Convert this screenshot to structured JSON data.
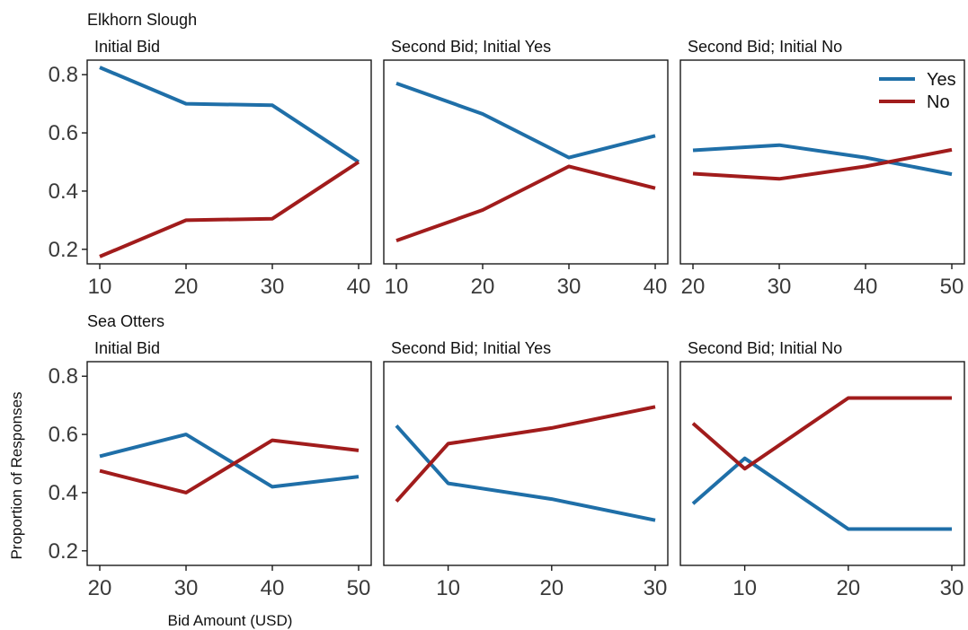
{
  "figure": {
    "ylabel": "Proportion of Responses",
    "xlabel": "Bid Amount (USD)",
    "row_titles": [
      "Elkhorn Slough",
      "Sea Otters"
    ],
    "legend": {
      "placement": "top-right of top-right panel",
      "entries": [
        {
          "label": "Yes",
          "color": "#1f6fa8"
        },
        {
          "label": "No",
          "color": "#a11c1c"
        }
      ]
    }
  },
  "chart_data": [
    {
      "type": "line",
      "group": "Elkhorn Slough",
      "title": "Initial Bid",
      "xlim": [
        10,
        40
      ],
      "ylim": [
        0.15,
        0.85
      ],
      "xticks": [
        10,
        20,
        30,
        40
      ],
      "yticks": [
        0.2,
        0.4,
        0.6,
        0.8
      ],
      "series": [
        {
          "name": "Yes",
          "color": "#1f6fa8",
          "x": [
            10,
            20,
            30,
            40
          ],
          "y": [
            0.825,
            0.7,
            0.695,
            0.5
          ]
        },
        {
          "name": "No",
          "color": "#a11c1c",
          "x": [
            10,
            20,
            30,
            40
          ],
          "y": [
            0.175,
            0.3,
            0.305,
            0.5
          ]
        }
      ]
    },
    {
      "type": "line",
      "group": "Elkhorn Slough",
      "title": "Second Bid; Initial Yes",
      "xlim": [
        10,
        40
      ],
      "ylim": [
        0.15,
        0.85
      ],
      "xticks": [
        10,
        20,
        30,
        40
      ],
      "yticks": [
        0.2,
        0.4,
        0.6,
        0.8
      ],
      "series": [
        {
          "name": "Yes",
          "color": "#1f6fa8",
          "x": [
            10,
            20,
            30,
            40
          ],
          "y": [
            0.77,
            0.665,
            0.515,
            0.59
          ]
        },
        {
          "name": "No",
          "color": "#a11c1c",
          "x": [
            10,
            20,
            30,
            40
          ],
          "y": [
            0.23,
            0.335,
            0.485,
            0.41
          ]
        }
      ]
    },
    {
      "type": "line",
      "group": "Elkhorn Slough",
      "title": "Second Bid; Initial No",
      "xlim": [
        20,
        50
      ],
      "ylim": [
        0.15,
        0.85
      ],
      "xticks": [
        20,
        30,
        40,
        50
      ],
      "yticks": [
        0.2,
        0.4,
        0.6,
        0.8
      ],
      "series": [
        {
          "name": "Yes",
          "color": "#1f6fa8",
          "x": [
            20,
            30,
            40,
            50
          ],
          "y": [
            0.54,
            0.558,
            0.515,
            0.458
          ]
        },
        {
          "name": "No",
          "color": "#a11c1c",
          "x": [
            20,
            30,
            40,
            50
          ],
          "y": [
            0.46,
            0.442,
            0.485,
            0.542
          ]
        }
      ]
    },
    {
      "type": "line",
      "group": "Sea Otters",
      "title": "Initial Bid",
      "xlim": [
        20,
        50
      ],
      "ylim": [
        0.15,
        0.85
      ],
      "xticks": [
        20,
        30,
        40,
        50
      ],
      "yticks": [
        0.2,
        0.4,
        0.6,
        0.8
      ],
      "series": [
        {
          "name": "Yes",
          "color": "#1f6fa8",
          "x": [
            20,
            30,
            40,
            50
          ],
          "y": [
            0.525,
            0.6,
            0.42,
            0.455
          ]
        },
        {
          "name": "No",
          "color": "#a11c1c",
          "x": [
            20,
            30,
            40,
            50
          ],
          "y": [
            0.475,
            0.4,
            0.58,
            0.545
          ]
        }
      ]
    },
    {
      "type": "line",
      "group": "Sea Otters",
      "title": "Second Bid; Initial Yes",
      "xlim": [
        5,
        30
      ],
      "ylim": [
        0.15,
        0.85
      ],
      "xticks": [
        10,
        20,
        30
      ],
      "yticks": [
        0.2,
        0.4,
        0.6,
        0.8
      ],
      "series": [
        {
          "name": "Yes",
          "color": "#1f6fa8",
          "x": [
            5,
            10,
            20,
            30
          ],
          "y": [
            0.63,
            0.432,
            0.378,
            0.305
          ]
        },
        {
          "name": "No",
          "color": "#a11c1c",
          "x": [
            5,
            10,
            20,
            30
          ],
          "y": [
            0.37,
            0.568,
            0.622,
            0.695
          ]
        }
      ]
    },
    {
      "type": "line",
      "group": "Sea Otters",
      "title": "Second Bid; Initial No",
      "xlim": [
        5,
        30
      ],
      "ylim": [
        0.15,
        0.85
      ],
      "xticks": [
        10,
        20,
        30
      ],
      "yticks": [
        0.2,
        0.4,
        0.6,
        0.8
      ],
      "series": [
        {
          "name": "Yes",
          "color": "#1f6fa8",
          "x": [
            5,
            10,
            20,
            30
          ],
          "y": [
            0.362,
            0.518,
            0.275,
            0.275
          ]
        },
        {
          "name": "No",
          "color": "#a11c1c",
          "x": [
            5,
            10,
            20,
            30
          ],
          "y": [
            0.638,
            0.482,
            0.725,
            0.725
          ]
        }
      ]
    }
  ]
}
